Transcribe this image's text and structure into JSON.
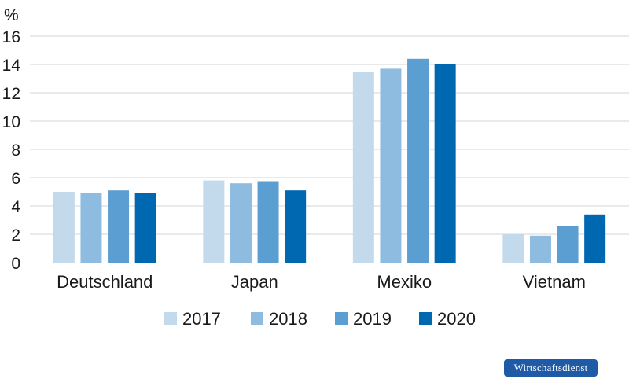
{
  "chart_data": {
    "type": "bar",
    "unit_label": "%",
    "categories": [
      "Deutschland",
      "Japan",
      "Mexiko",
      "Vietnam"
    ],
    "series": [
      {
        "name": "2017",
        "color": "#c3daed",
        "values": [
          5.0,
          5.8,
          13.5,
          2.0
        ]
      },
      {
        "name": "2018",
        "color": "#8ebce0",
        "values": [
          4.9,
          5.6,
          13.7,
          1.9
        ]
      },
      {
        "name": "2019",
        "color": "#5b9fd2",
        "values": [
          5.1,
          5.75,
          14.4,
          2.6
        ]
      },
      {
        "name": "2020",
        "color": "#0067b1",
        "values": [
          4.9,
          5.1,
          14.0,
          3.4
        ]
      }
    ],
    "ylim": [
      0,
      16
    ],
    "yticks": [
      0,
      2,
      4,
      6,
      8,
      10,
      12,
      14,
      16
    ],
    "grid": true,
    "legend_position": "bottom-center"
  },
  "brand": {
    "label": "Wirtschaftsdienst",
    "color": "#1f5aa6"
  }
}
